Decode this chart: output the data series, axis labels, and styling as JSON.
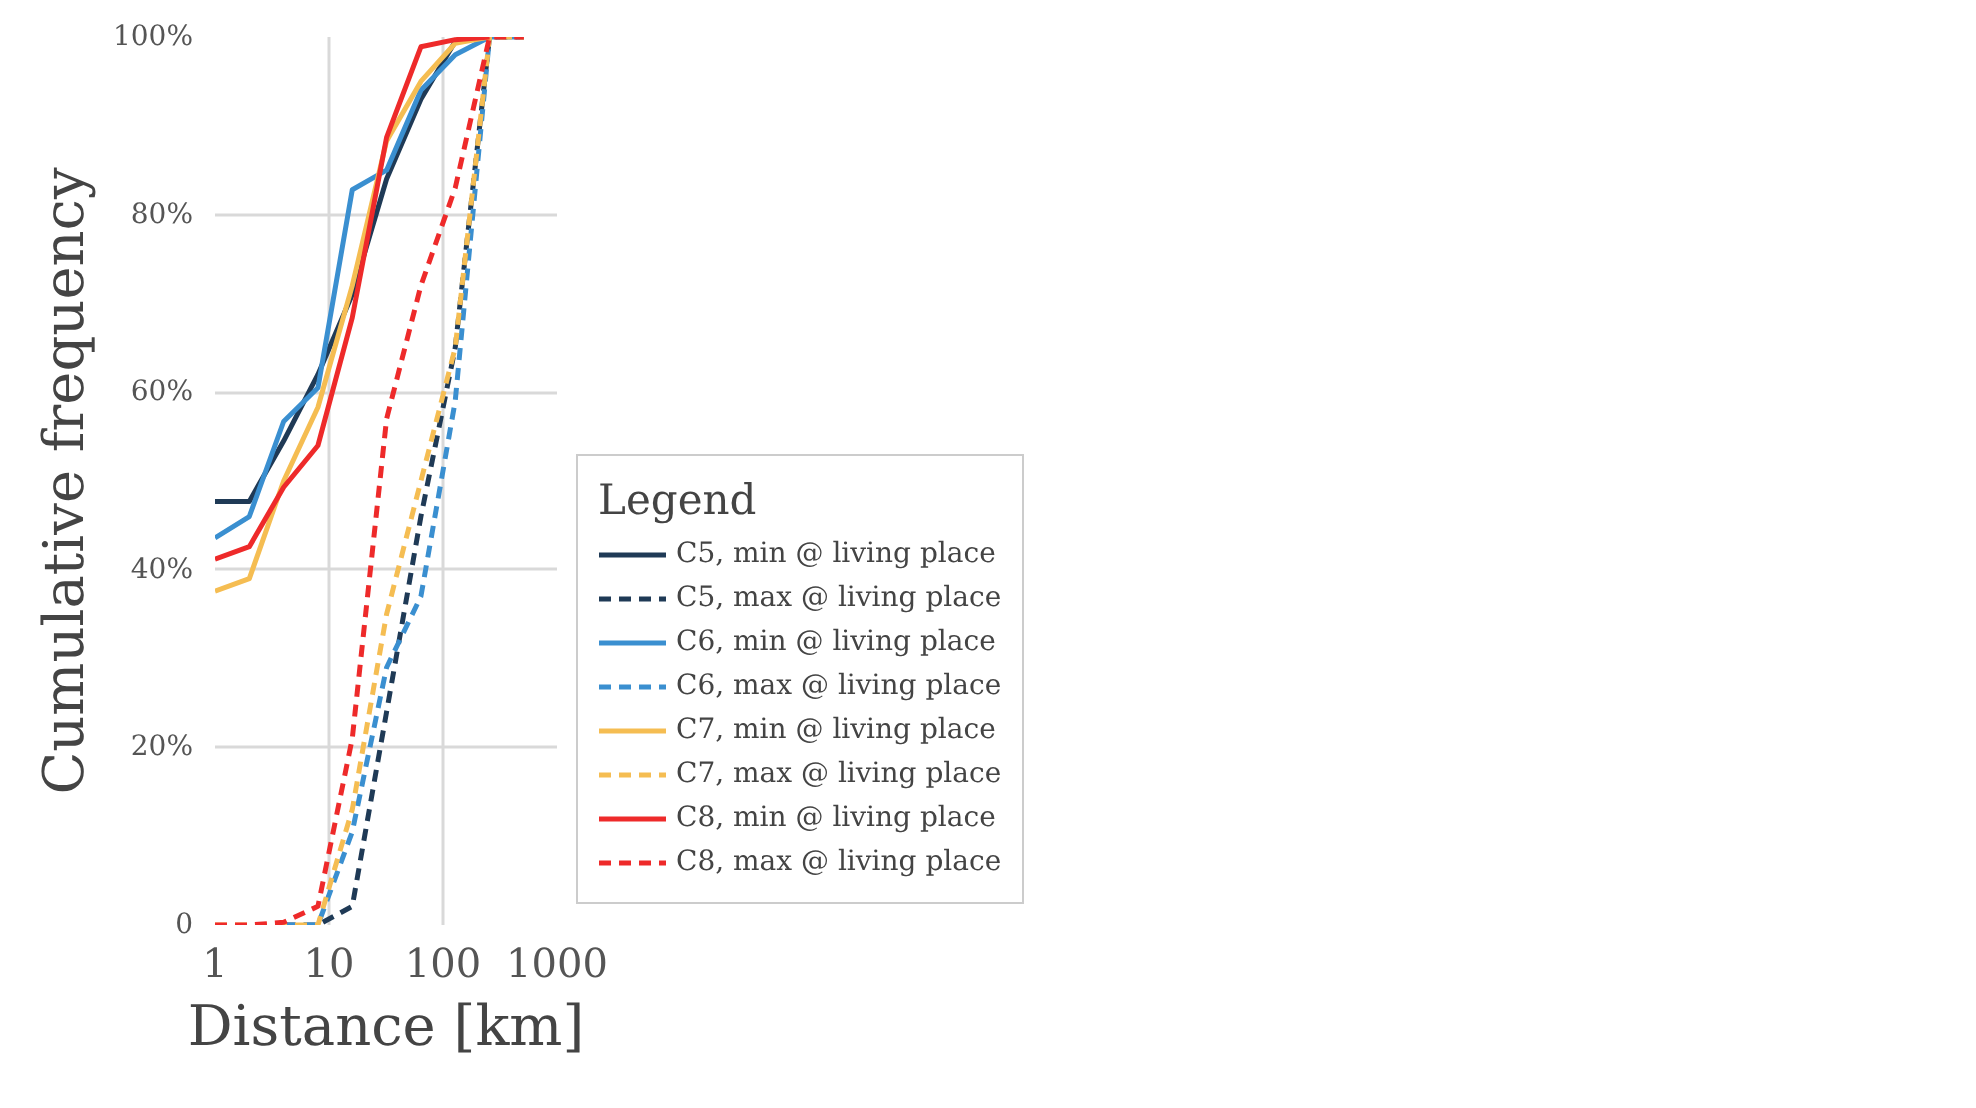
{
  "chart_data": {
    "type": "line",
    "xlabel": "Distance [km]",
    "ylabel": "Cumulative frequency",
    "legend_title": "Legend",
    "log": "x",
    "grid": true,
    "legend": "right",
    "marker": "none",
    "xlim": [
      1,
      1000
    ],
    "xticks": [
      1,
      10,
      100,
      1000
    ],
    "ylim": [
      0,
      100
    ],
    "yticks": [
      {
        "value": 0,
        "label": "0"
      },
      {
        "value": 20,
        "label": "20%"
      },
      {
        "value": 40,
        "label": "40%"
      },
      {
        "value": 60,
        "label": "60%"
      },
      {
        "value": 80,
        "label": "80%"
      },
      {
        "value": 100,
        "label": "100%"
      }
    ],
    "series": [
      {
        "name": "C5, min @ living place",
        "color": "#1f3a56",
        "line_style": "solid",
        "x": [
          1,
          2,
          4,
          8,
          16,
          32,
          64,
          128,
          256
        ],
        "values": [
          47.7,
          47.7,
          54.5,
          62,
          71,
          84,
          93,
          99.5,
          100
        ]
      },
      {
        "name": "C5, max @ living place",
        "color": "#1f3a56",
        "line_style": "dashed",
        "x": [
          4,
          8,
          16,
          32,
          64,
          128,
          256,
          512
        ],
        "values": [
          0,
          0,
          2.1,
          24,
          46,
          65,
          100,
          100
        ]
      },
      {
        "name": "C6, min @ living place",
        "color": "#3a8fd0",
        "line_style": "solid",
        "x": [
          1,
          2,
          4,
          8,
          16,
          32,
          64,
          128,
          256
        ],
        "values": [
          43.6,
          46,
          56.7,
          60.5,
          82.8,
          85,
          94,
          98,
          100
        ]
      },
      {
        "name": "C6, max @ living place",
        "color": "#3a8fd0",
        "line_style": "dashed",
        "x": [
          4,
          8,
          16,
          32,
          64,
          128,
          256,
          512
        ],
        "values": [
          0,
          0,
          10.5,
          29,
          37,
          59,
          100,
          100
        ]
      },
      {
        "name": "C7, min @ living place",
        "color": "#f5bd52",
        "line_style": "solid",
        "x": [
          1,
          2,
          4,
          8,
          16,
          32,
          64,
          128,
          256
        ],
        "values": [
          37.6,
          39,
          50,
          58.3,
          72,
          88.3,
          95,
          99.3,
          100
        ]
      },
      {
        "name": "C7, max @ living place",
        "color": "#f5bd52",
        "line_style": "dashed",
        "x": [
          1,
          2,
          4,
          8,
          16,
          32,
          64,
          128,
          256,
          512
        ],
        "values": [
          0,
          0,
          0,
          0,
          13,
          35,
          50,
          65,
          100,
          100
        ]
      },
      {
        "name": "C8, min @ living place",
        "color": "#ee2a2a",
        "line_style": "solid",
        "x": [
          1,
          2,
          4,
          8,
          16,
          32,
          64,
          128,
          256
        ],
        "values": [
          41.2,
          42.6,
          49.3,
          54,
          68.4,
          88.7,
          98.9,
          99.7,
          100
        ]
      },
      {
        "name": "C8, max @ living place",
        "color": "#ee2a2a",
        "line_style": "dashed",
        "x": [
          1,
          2,
          4,
          8,
          16,
          32,
          64,
          128,
          256,
          512
        ],
        "values": [
          0,
          0,
          0.3,
          2.1,
          21,
          57,
          72,
          83,
          100,
          100
        ]
      }
    ]
  }
}
